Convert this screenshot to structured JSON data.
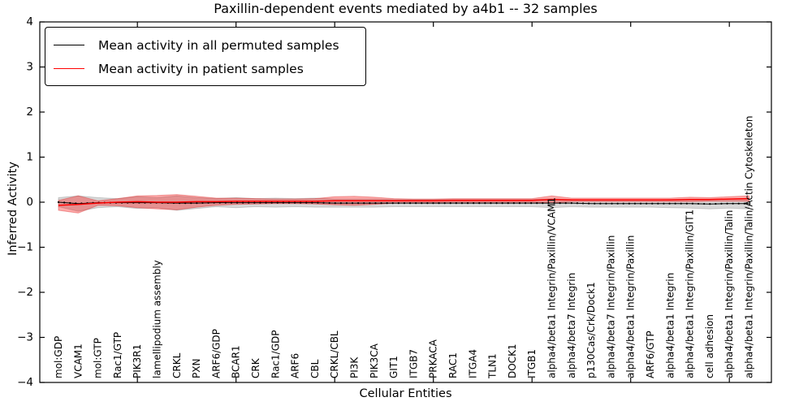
{
  "chart_data": {
    "type": "line",
    "title": "Paxillin-dependent events mediated by a4b1 -- 32 samples",
    "xlabel": "Cellular Entities",
    "ylabel": "Inferred Activity",
    "ylim": [
      -4,
      4
    ],
    "grid": false,
    "legend_position": "upper left",
    "yticks": [
      {
        "v": 4,
        "label": "4"
      },
      {
        "v": 3,
        "label": "3"
      },
      {
        "v": 2,
        "label": "2"
      },
      {
        "v": 1,
        "label": "1"
      },
      {
        "v": 0,
        "label": "0"
      },
      {
        "v": -1,
        "label": "−1"
      },
      {
        "v": -2,
        "label": "−2"
      },
      {
        "v": -3,
        "label": "−3"
      },
      {
        "v": -4,
        "label": "−4"
      }
    ],
    "xtick_indices": [
      4,
      9,
      14,
      19,
      24,
      29,
      34
    ],
    "categories": [
      "mol:GDP",
      "VCAM1",
      "mol:GTP",
      "Rac1/GTP",
      "PIK3R1",
      "lamellipodium assembly",
      "CRKL",
      "PXN",
      "ARF6/GDP",
      "BCAR1",
      "CRK",
      "Rac1/GDP",
      "ARF6",
      "CBL",
      "CRKL/CBL",
      "PI3K",
      "PIK3CA",
      "GIT1",
      "ITGB7",
      "PRKACA",
      "RAC1",
      "ITGA4",
      "TLN1",
      "DOCK1",
      "ITGB1",
      "alpha4/beta1 Integrin/Paxillin/VCAM1",
      "alpha4/beta7 Integrin",
      "p130Cas/Crk/Dock1",
      "alpha4/beta7 Integrin/Paxillin",
      "alpha4/beta1 Integrin/Paxillin",
      "ARF6/GTP",
      "alpha4/beta1 Integrin",
      "alpha4/beta1 Integrin/Paxillin/GIT1",
      "cell adhesion",
      "alpha4/beta1 Integrin/Paxillin/Talin",
      "alpha4/beta1 Integrin/Paxillin/Talin/Actin Cytoskeleton"
    ],
    "series": [
      {
        "name": "Mean activity in all permuted samples",
        "color": "#000000",
        "band_color": "rgba(130,130,130,0.30)",
        "band_edge": "rgba(110,110,110,0.30)",
        "mean": [
          0.0,
          -0.03,
          -0.01,
          -0.01,
          -0.01,
          -0.01,
          -0.02,
          -0.02,
          -0.01,
          -0.01,
          -0.01,
          -0.01,
          -0.01,
          -0.01,
          -0.02,
          -0.02,
          -0.02,
          -0.02,
          -0.02,
          -0.02,
          -0.02,
          -0.02,
          -0.02,
          -0.02,
          -0.02,
          -0.02,
          -0.02,
          -0.03,
          -0.03,
          -0.03,
          -0.03,
          -0.03,
          -0.03,
          -0.04,
          -0.03,
          -0.03
        ],
        "std": [
          0.1,
          0.17,
          0.11,
          0.09,
          0.13,
          0.11,
          0.16,
          0.12,
          0.09,
          0.11,
          0.09,
          0.1,
          0.09,
          0.1,
          0.09,
          0.09,
          0.09,
          0.08,
          0.08,
          0.08,
          0.08,
          0.08,
          0.08,
          0.08,
          0.08,
          0.1,
          0.08,
          0.08,
          0.08,
          0.08,
          0.08,
          0.09,
          0.1,
          0.11,
          0.1,
          0.12
        ]
      },
      {
        "name": "Mean activity in patient samples",
        "color": "#ff0000",
        "band_color": "rgba(255,0,0,0.33)",
        "band_edge": "rgba(215,40,40,0.40)",
        "mean": [
          -0.07,
          -0.05,
          -0.02,
          0.0,
          0.01,
          0.0,
          0.0,
          0.01,
          0.01,
          0.02,
          0.02,
          0.02,
          0.02,
          0.02,
          0.03,
          0.03,
          0.03,
          0.03,
          0.03,
          0.03,
          0.04,
          0.04,
          0.04,
          0.04,
          0.04,
          0.06,
          0.05,
          0.05,
          0.05,
          0.05,
          0.05,
          0.05,
          0.06,
          0.06,
          0.07,
          0.08
        ],
        "std": [
          0.11,
          0.19,
          0.05,
          0.08,
          0.13,
          0.15,
          0.17,
          0.12,
          0.08,
          0.07,
          0.06,
          0.05,
          0.05,
          0.06,
          0.09,
          0.1,
          0.08,
          0.05,
          0.04,
          0.04,
          0.04,
          0.04,
          0.04,
          0.04,
          0.04,
          0.08,
          0.04,
          0.04,
          0.04,
          0.04,
          0.04,
          0.04,
          0.05,
          0.04,
          0.05,
          0.06
        ]
      }
    ]
  }
}
